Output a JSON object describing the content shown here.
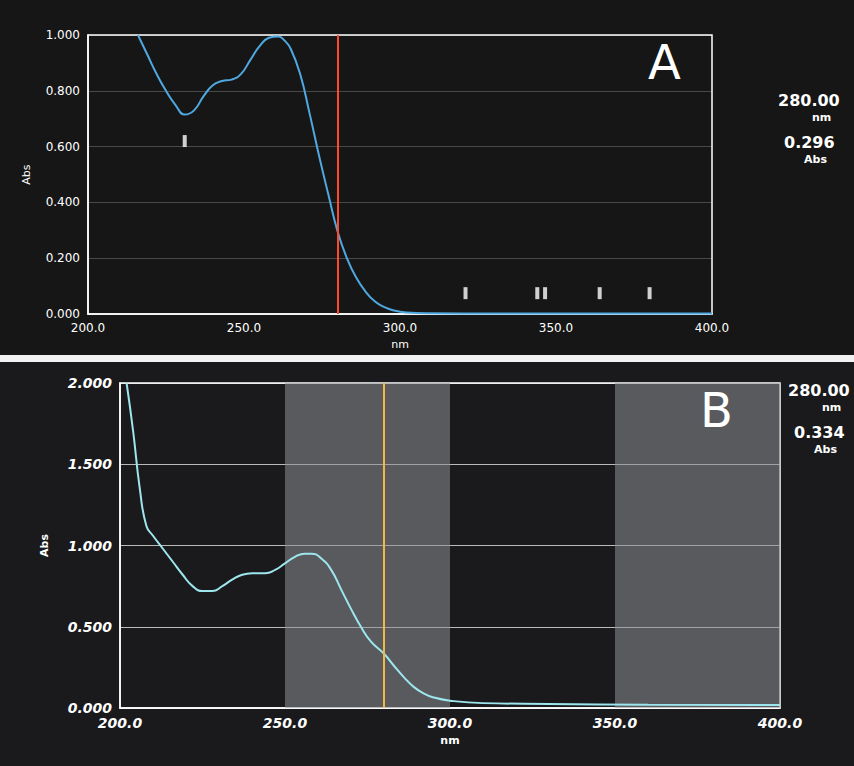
{
  "chart_data": [
    {
      "type": "line",
      "panel_label": "A",
      "x_label": "nm",
      "y_label": "Abs",
      "xlim": [
        200,
        400
      ],
      "xticks": [
        {
          "value": 200,
          "label": "200.0"
        },
        {
          "value": 250,
          "label": "250.0"
        },
        {
          "value": 300,
          "label": "300.0"
        },
        {
          "value": 350,
          "label": "350.0"
        },
        {
          "value": 400,
          "label": "400.0"
        }
      ],
      "ylim": [
        0,
        1
      ],
      "yticks": [
        {
          "value": 0,
          "label": "0.000"
        },
        {
          "value": 0.2,
          "label": "0.200"
        },
        {
          "value": 0.4,
          "label": "0.400"
        },
        {
          "value": 0.6,
          "label": "0.600"
        },
        {
          "value": 0.8,
          "label": "0.800"
        },
        {
          "value": 1,
          "label": "1.000"
        }
      ],
      "grid": true,
      "color": "#4fa8e0",
      "x": [
        216,
        219,
        222,
        225,
        228,
        231,
        234,
        237,
        240,
        243,
        246,
        249,
        252,
        255,
        258,
        261,
        263,
        265,
        268,
        271,
        274,
        277,
        280,
        283,
        286,
        289,
        292,
        295,
        298,
        302,
        310,
        330,
        370,
        400
      ],
      "values": [
        1.0,
        0.93,
        0.86,
        0.8,
        0.75,
        0.715,
        0.73,
        0.78,
        0.82,
        0.835,
        0.84,
        0.86,
        0.91,
        0.96,
        0.99,
        0.995,
        0.98,
        0.95,
        0.86,
        0.72,
        0.57,
        0.43,
        0.296,
        0.2,
        0.13,
        0.08,
        0.045,
        0.025,
        0.013,
        0.006,
        0.003,
        0.002,
        0.002,
        0.002
      ],
      "peak_markers": {
        "x": [
          231,
          321,
          344,
          346.5,
          364,
          380
        ],
        "y": [
          0.62,
          0.075,
          0.075,
          0.075,
          0.075,
          0.075
        ]
      },
      "cursor": {
        "x": 280,
        "x_label": "280.00",
        "x_unit": "nm",
        "y": 0.296,
        "y_label": "0.296",
        "y_unit": "Abs",
        "color": "#ff4a2a"
      }
    },
    {
      "type": "line",
      "panel_label": "B",
      "x_label": "nm",
      "y_label": "Abs",
      "xlim": [
        200,
        400
      ],
      "xticks": [
        {
          "value": 200,
          "label": "200.0"
        },
        {
          "value": 250,
          "label": "250.0"
        },
        {
          "value": 300,
          "label": "300.0"
        },
        {
          "value": 350,
          "label": "350.0"
        },
        {
          "value": 400,
          "label": "400.0"
        }
      ],
      "ylim": [
        0,
        2
      ],
      "yticks": [
        {
          "value": 0,
          "label": "0.000"
        },
        {
          "value": 0.5,
          "label": "0.500"
        },
        {
          "value": 1,
          "label": "1.000"
        },
        {
          "value": 1.5,
          "label": "1.500"
        },
        {
          "value": 2,
          "label": "2.000"
        }
      ],
      "grid": true,
      "color": "#9ee6ee",
      "x": [
        202,
        204,
        206,
        208,
        210,
        213,
        216,
        219,
        222,
        225,
        228,
        231,
        234,
        237,
        240,
        244,
        247,
        250,
        253,
        256,
        258,
        261,
        264,
        267,
        270,
        273,
        276,
        280,
        283,
        286,
        289,
        292,
        295,
        300,
        310,
        330,
        360,
        400
      ],
      "values": [
        2.0,
        1.7,
        1.35,
        1.12,
        1.06,
        0.98,
        0.9,
        0.82,
        0.75,
        0.72,
        0.72,
        0.75,
        0.79,
        0.82,
        0.83,
        0.83,
        0.85,
        0.89,
        0.93,
        0.95,
        0.95,
        0.92,
        0.85,
        0.73,
        0.61,
        0.5,
        0.41,
        0.334,
        0.26,
        0.19,
        0.13,
        0.09,
        0.065,
        0.045,
        0.03,
        0.025,
        0.02,
        0.018
      ],
      "shaded_bands": [
        [
          250,
          300
        ],
        [
          350,
          400
        ]
      ],
      "cursor": {
        "x": 280,
        "x_label": "280.00",
        "x_unit": "nm",
        "y": 0.334,
        "y_label": "0.334",
        "y_unit": "Abs",
        "color": "#f2b844"
      }
    }
  ]
}
